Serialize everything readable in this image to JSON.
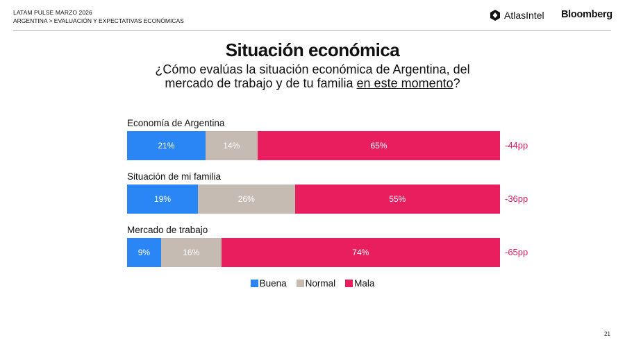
{
  "header": {
    "line1": "LATAM PULSE MARZO 2026",
    "line2": "ARGENTINA > EVALUACIÓN Y EXPECTATIVAS ECONÓMICAS",
    "logos": [
      "AtlasIntel",
      "Bloomberg"
    ]
  },
  "page_number": "21",
  "colors": {
    "Buena": "#2a86f5",
    "Normal": "#c5bbb3",
    "Mala": "#e81e5e",
    "diff": "#e31c5f"
  },
  "chart_data": {
    "type": "bar",
    "orientation": "horizontal",
    "stacked": true,
    "title": "Situación económica",
    "subtitle_pre": "¿Cómo evalúas la situación económica de Argentina, del mercado de trabajo y de tu familia ",
    "subtitle_underlined": "en este momento",
    "subtitle_post": "?",
    "categories": [
      "Economía de Argentina",
      "Situación de mi familia",
      "Mercado de trabajo"
    ],
    "series": [
      {
        "name": "Buena",
        "values": [
          21,
          19,
          9
        ],
        "labels": [
          "21%",
          "19%",
          "9%"
        ]
      },
      {
        "name": "Normal",
        "values": [
          14,
          26,
          16
        ],
        "labels": [
          "14%",
          "26%",
          "16%"
        ]
      },
      {
        "name": "Mala",
        "values": [
          65,
          55,
          74
        ],
        "labels": [
          "65%",
          "55%",
          "74%"
        ]
      }
    ],
    "annotations": [
      "-44pp",
      "-36pp",
      "-65pp"
    ],
    "legend": [
      "Buena",
      "Normal",
      "Mala"
    ],
    "legend_placement": "bottom",
    "grid": false
  }
}
